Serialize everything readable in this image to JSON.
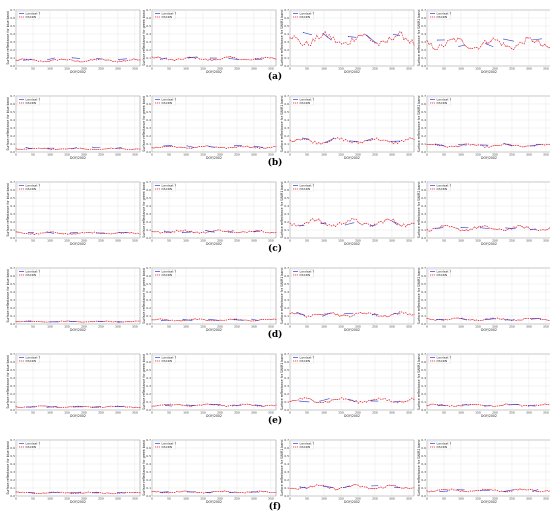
{
  "figure": {
    "row_labels": [
      "(a)",
      "(b)",
      "(c)",
      "(d)",
      "(e)",
      "(f)"
    ],
    "legend": [
      "Landsat 7",
      "DSCRN"
    ],
    "xlabel": "DOY/2002",
    "ylabels": [
      "Surface reflectance for blue band",
      "Surface reflectance for green band",
      "Surface reflectance for SWIR1 band",
      "Surface reflectance for SWIR2 band"
    ],
    "x_ticks": [
      "0",
      "50",
      "100",
      "150",
      "200",
      "250",
      "300",
      "350"
    ],
    "y_ticks": [
      "0.0",
      "0.1",
      "0.2",
      "0.3",
      "0.4",
      "0.5",
      "0.6",
      "0.7"
    ],
    "colors": {
      "landsat": "#2b3ad8",
      "dscrn": "#e0192b",
      "grid": "#d9d9d9"
    }
  },
  "chart_data": [
    {
      "type": "line",
      "row": "(a)",
      "ylabel": "Surface reflectance for blue band",
      "xlabel": "DOY/2002",
      "xlim": [
        0,
        365
      ],
      "ylim": [
        0,
        0.7
      ],
      "dscrn_level": 0.07,
      "landsat_level": 0.09
    },
    {
      "type": "line",
      "row": "(a)",
      "ylabel": "Surface reflectance for green band",
      "xlabel": "DOY/2002",
      "xlim": [
        0,
        365
      ],
      "ylim": [
        0,
        0.7
      ],
      "dscrn_level": 0.09,
      "landsat_level": 0.1
    },
    {
      "type": "line",
      "row": "(a)",
      "ylabel": "Surface reflectance for SWIR1 band",
      "xlabel": "DOY/2002",
      "xlim": [
        0,
        365
      ],
      "ylim": [
        0,
        0.7
      ],
      "dscrn_level": 0.33,
      "landsat_level": 0.35
    },
    {
      "type": "line",
      "row": "(a)",
      "ylabel": "Surface reflectance for SWIR2 band",
      "xlabel": "DOY/2002",
      "xlim": [
        0,
        365
      ],
      "ylim": [
        0,
        0.7
      ],
      "dscrn_level": 0.28,
      "landsat_level": 0.3
    },
    {
      "type": "line",
      "row": "(b)",
      "ylabel": "Surface reflectance for blue band",
      "xlabel": "DOY/2002",
      "xlim": [
        0,
        365
      ],
      "ylim": [
        0,
        0.7
      ],
      "dscrn_level": 0.04,
      "landsat_level": 0.05
    },
    {
      "type": "line",
      "row": "(b)",
      "ylabel": "Surface reflectance for green band",
      "xlabel": "DOY/2002",
      "xlim": [
        0,
        365
      ],
      "ylim": [
        0,
        0.7
      ],
      "dscrn_level": 0.06,
      "landsat_level": 0.07
    },
    {
      "type": "line",
      "row": "(b)",
      "ylabel": "Surface reflectance for SWIR1 band",
      "xlabel": "DOY/2002",
      "xlim": [
        0,
        365
      ],
      "ylim": [
        0,
        0.7
      ],
      "dscrn_level": 0.14,
      "landsat_level": 0.15
    },
    {
      "type": "line",
      "row": "(b)",
      "ylabel": "Surface reflectance for SWIR2 band",
      "xlabel": "DOY/2002",
      "xlim": [
        0,
        365
      ],
      "ylim": [
        0,
        0.7
      ],
      "dscrn_level": 0.08,
      "landsat_level": 0.09
    },
    {
      "type": "line",
      "row": "(c)",
      "ylabel": "Surface reflectance for blue band",
      "xlabel": "DOY/2002",
      "xlim": [
        0,
        365
      ],
      "ylim": [
        0,
        0.7
      ],
      "dscrn_level": 0.06,
      "landsat_level": 0.07
    },
    {
      "type": "line",
      "row": "(c)",
      "ylabel": "Surface reflectance for green band",
      "xlabel": "DOY/2002",
      "xlim": [
        0,
        365
      ],
      "ylim": [
        0,
        0.7
      ],
      "dscrn_level": 0.08,
      "landsat_level": 0.08
    },
    {
      "type": "line",
      "row": "(c)",
      "ylabel": "Surface reflectance for SWIR1 band",
      "xlabel": "DOY/2002",
      "xlim": [
        0,
        365
      ],
      "ylim": [
        0,
        0.7
      ],
      "dscrn_level": 0.19,
      "landsat_level": 0.18
    },
    {
      "type": "line",
      "row": "(c)",
      "ylabel": "Surface reflectance for SWIR2 band",
      "xlabel": "DOY/2002",
      "xlim": [
        0,
        365
      ],
      "ylim": [
        0,
        0.7
      ],
      "dscrn_level": 0.12,
      "landsat_level": 0.12
    },
    {
      "type": "line",
      "row": "(d)",
      "ylabel": "Surface reflectance for blue band",
      "xlabel": "DOY/2002",
      "xlim": [
        0,
        365
      ],
      "ylim": [
        0,
        0.7
      ],
      "dscrn_level": 0.03,
      "landsat_level": 0.03
    },
    {
      "type": "line",
      "row": "(d)",
      "ylabel": "Surface reflectance for green band",
      "xlabel": "DOY/2002",
      "xlim": [
        0,
        365
      ],
      "ylim": [
        0,
        0.7
      ],
      "dscrn_level": 0.05,
      "landsat_level": 0.05
    },
    {
      "type": "line",
      "row": "(d)",
      "ylabel": "Surface reflectance for SWIR1 band",
      "xlabel": "DOY/2002",
      "xlim": [
        0,
        365
      ],
      "ylim": [
        0,
        0.7
      ],
      "dscrn_level": 0.12,
      "landsat_level": 0.12
    },
    {
      "type": "line",
      "row": "(d)",
      "ylabel": "Surface reflectance for SWIR2 band",
      "xlabel": "DOY/2002",
      "xlim": [
        0,
        365
      ],
      "ylim": [
        0,
        0.7
      ],
      "dscrn_level": 0.06,
      "landsat_level": 0.06
    },
    {
      "type": "line",
      "row": "(e)",
      "ylabel": "Surface reflectance for blue band",
      "xlabel": "DOY/2002",
      "xlim": [
        0,
        365
      ],
      "ylim": [
        0,
        0.7
      ],
      "dscrn_level": 0.04,
      "landsat_level": 0.04
    },
    {
      "type": "line",
      "row": "(e)",
      "ylabel": "Surface reflectance for green band",
      "xlabel": "DOY/2002",
      "xlim": [
        0,
        365
      ],
      "ylim": [
        0,
        0.7
      ],
      "dscrn_level": 0.06,
      "landsat_level": 0.06
    },
    {
      "type": "line",
      "row": "(e)",
      "ylabel": "Surface reflectance for SWIR1 band",
      "xlabel": "DOY/2002",
      "xlim": [
        0,
        365
      ],
      "ylim": [
        0,
        0.7
      ],
      "dscrn_level": 0.12,
      "landsat_level": 0.12
    },
    {
      "type": "line",
      "row": "(e)",
      "ylabel": "Surface reflectance for SWIR2 band",
      "xlabel": "DOY/2002",
      "xlim": [
        0,
        365
      ],
      "ylim": [
        0,
        0.7
      ],
      "dscrn_level": 0.06,
      "landsat_level": 0.06
    },
    {
      "type": "line",
      "row": "(f)",
      "ylabel": "Surface reflectance for blue band",
      "xlabel": "DOY/2002",
      "xlim": [
        0,
        365
      ],
      "ylim": [
        0,
        0.7
      ],
      "dscrn_level": 0.04,
      "landsat_level": 0.04
    },
    {
      "type": "line",
      "row": "(f)",
      "ylabel": "Surface reflectance for green band",
      "xlabel": "DOY/2002",
      "xlim": [
        0,
        365
      ],
      "ylim": [
        0,
        0.7
      ],
      "dscrn_level": 0.05,
      "landsat_level": 0.05
    },
    {
      "type": "line",
      "row": "(f)",
      "ylabel": "Surface reflectance for SWIR1 band",
      "xlabel": "DOY/2002",
      "xlim": [
        0,
        365
      ],
      "ylim": [
        0,
        0.7
      ],
      "dscrn_level": 0.11,
      "landsat_level": 0.11
    },
    {
      "type": "line",
      "row": "(f)",
      "ylabel": "Surface reflectance for SWIR2 band",
      "xlabel": "DOY/2002",
      "xlim": [
        0,
        365
      ],
      "ylim": [
        0,
        0.7
      ],
      "dscrn_level": 0.07,
      "landsat_level": 0.07
    }
  ]
}
